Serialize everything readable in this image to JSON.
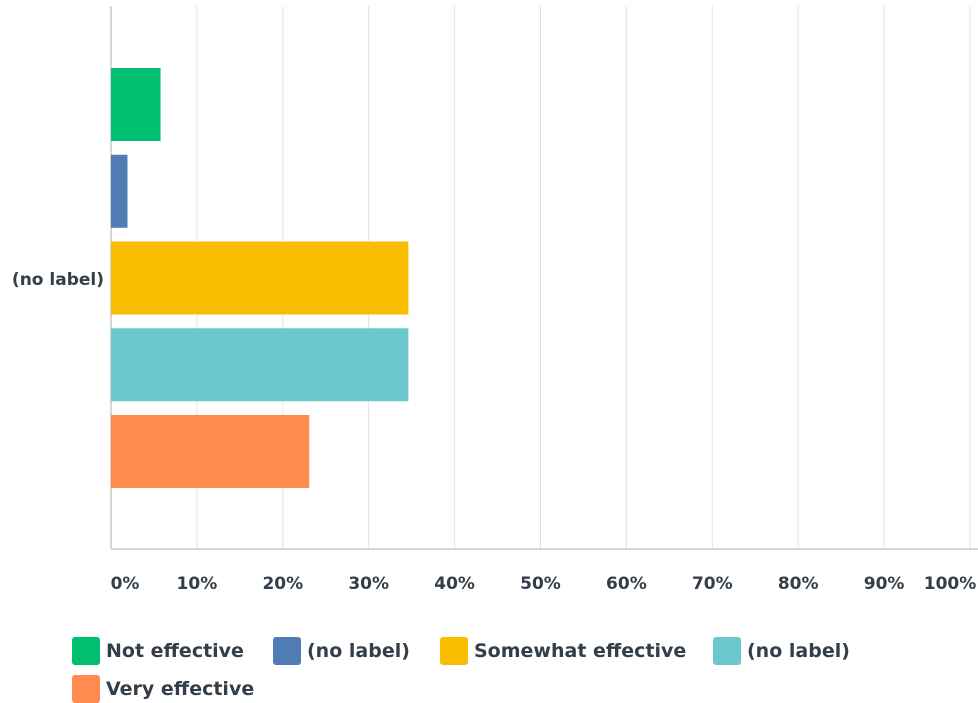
{
  "chart_data": {
    "type": "bar",
    "orientation": "horizontal",
    "categories": [
      "(no label)"
    ],
    "series": [
      {
        "name": "Not effective",
        "values": [
          5.77
        ],
        "color": "#00bf6f"
      },
      {
        "name": "(no label)",
        "values": [
          1.92
        ],
        "color": "#507cb6"
      },
      {
        "name": "Somewhat effective",
        "values": [
          34.62
        ],
        "color": "#f9be00"
      },
      {
        "name": "(no label)",
        "values": [
          34.62
        ],
        "color": "#6bc8cd"
      },
      {
        "name": "Very effective",
        "values": [
          23.08
        ],
        "color": "#ff8b4f"
      }
    ],
    "x_ticks": [
      "0%",
      "10%",
      "20%",
      "30%",
      "40%",
      "50%",
      "60%",
      "70%",
      "80%",
      "90%",
      "100%"
    ],
    "xlim": [
      0,
      100
    ],
    "grid": true,
    "legend_position": "bottom"
  }
}
